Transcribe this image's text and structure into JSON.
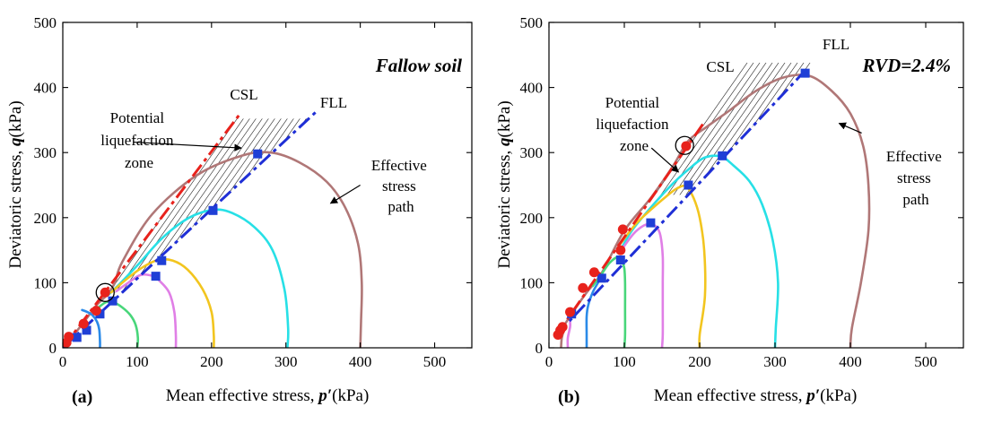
{
  "figure": {
    "colors": {
      "csl": "#e8221c",
      "fll": "#1f2fd6",
      "esp_main": "#b07777",
      "cyan": "#27e0e6",
      "yellow": "#f2c51f",
      "violet": "#e07fe6",
      "green": "#48d67a",
      "blue": "#2a8ae8",
      "marker_red": "#e8221c",
      "marker_blue": "#1f3fd6"
    }
  },
  "chart_data": [
    {
      "type": "line",
      "panel_label": "(a)",
      "title": "Fallow soil",
      "xlabel_pre": "Mean effective stress, ",
      "xlabel_sym": "p′",
      "xlabel_post": "(kPa)",
      "ylabel_pre": "Deviatoric stress, ",
      "ylabel_sym": "q",
      "ylabel_post": "(kPa)",
      "xlim": [
        0,
        550
      ],
      "ylim": [
        0,
        500
      ],
      "xticks": [
        0,
        100,
        200,
        300,
        400,
        500
      ],
      "yticks": [
        0,
        100,
        200,
        300,
        400,
        500
      ],
      "grid": false,
      "annotations": {
        "csl": "CSL",
        "fll": "FLL",
        "zone": [
          "Potential",
          "liquefaction",
          "zone"
        ],
        "esp": [
          "Effective",
          "stress",
          "path"
        ]
      },
      "csl_line": {
        "x": [
          0,
          240
        ],
        "y": [
          0,
          362
        ]
      },
      "fll_line": {
        "x": [
          0,
          340
        ],
        "y": [
          0,
          362
        ]
      },
      "hatch": {
        "q_min": 85,
        "q_max": 352
      },
      "circle": {
        "x": 57,
        "y": 85
      },
      "arrows": {
        "zone": {
          "from": [
            95,
            316
          ],
          "to": [
            240,
            307
          ]
        },
        "esp": {
          "from": [
            400,
            250
          ],
          "to": [
            360,
            222
          ]
        }
      },
      "series": [
        {
          "color_key": "esp_main",
          "points": [
            [
              400,
              0
            ],
            [
              401,
              40
            ],
            [
              402,
              100
            ],
            [
              397,
              160
            ],
            [
              380,
              215
            ],
            [
              355,
              255
            ],
            [
              318,
              285
            ],
            [
              280,
              300
            ],
            [
              240,
              295
            ],
            [
              180,
              265
            ],
            [
              120,
              205
            ],
            [
              80,
              132
            ],
            [
              70,
              100
            ],
            [
              60,
              82
            ],
            [
              45,
              65
            ],
            [
              30,
              42
            ],
            [
              15,
              20
            ],
            [
              8,
              8
            ]
          ]
        },
        {
          "color_key": "cyan",
          "points": [
            [
              302,
              0
            ],
            [
              303,
              30
            ],
            [
              298,
              90
            ],
            [
              282,
              150
            ],
            [
              258,
              185
            ],
            [
              228,
              207
            ],
            [
              203,
              212
            ],
            [
              170,
              200
            ],
            [
              135,
              170
            ],
            [
              103,
              130
            ],
            [
              78,
              100
            ],
            [
              60,
              80
            ]
          ]
        },
        {
          "color_key": "yellow",
          "points": [
            [
              203,
              0
            ],
            [
              203,
              20
            ],
            [
              200,
              55
            ],
            [
              188,
              90
            ],
            [
              168,
              120
            ],
            [
              148,
              134
            ],
            [
              128,
              135
            ],
            [
              105,
              122
            ],
            [
              82,
              102
            ],
            [
              65,
              85
            ]
          ]
        },
        {
          "color_key": "violet",
          "points": [
            [
              152,
              0
            ],
            [
              152,
              20
            ],
            [
              150,
              55
            ],
            [
              143,
              85
            ],
            [
              130,
              103
            ],
            [
              122,
              110
            ],
            [
              105,
              112
            ],
            [
              88,
              100
            ],
            [
              72,
              87
            ]
          ]
        },
        {
          "color_key": "green",
          "points": [
            [
              100,
              0
            ],
            [
              101,
              15
            ],
            [
              98,
              35
            ],
            [
              91,
              50
            ],
            [
              80,
              62
            ],
            [
              68,
              70
            ],
            [
              58,
              70
            ],
            [
              48,
              62
            ]
          ]
        },
        {
          "color_key": "blue",
          "points": [
            [
              50,
              0
            ],
            [
              50,
              10
            ],
            [
              49,
              28
            ],
            [
              46,
              40
            ],
            [
              40,
              50
            ],
            [
              33,
              55
            ],
            [
              26,
              58
            ]
          ]
        }
      ],
      "markers_red": [
        [
          5,
          8
        ],
        [
          8,
          17
        ],
        [
          28,
          37
        ],
        [
          45,
          57
        ],
        [
          57,
          85
        ]
      ],
      "markers_blue": [
        [
          19,
          16
        ],
        [
          32,
          27
        ],
        [
          50,
          52
        ],
        [
          67,
          72
        ],
        [
          125,
          110
        ],
        [
          133,
          134
        ],
        [
          202,
          211
        ],
        [
          262,
          298
        ]
      ]
    },
    {
      "type": "line",
      "panel_label": "(b)",
      "title": "RVD=2.4%",
      "xlabel_pre": "Mean effective stress, ",
      "xlabel_sym": "p′",
      "xlabel_post": "(kPa)",
      "ylabel_pre": "Deviatoric stress, ",
      "ylabel_sym": "q",
      "ylabel_post": "(kPa)",
      "xlim": [
        0,
        550
      ],
      "ylim": [
        0,
        500
      ],
      "xticks": [
        0,
        100,
        200,
        300,
        400,
        500
      ],
      "yticks": [
        0,
        100,
        200,
        300,
        400,
        500
      ],
      "grid": false,
      "annotations": {
        "csl": "CSL",
        "fll": "FLL",
        "zone": [
          "Potential",
          "liquefaction",
          "zone"
        ],
        "esp": [
          "Effective",
          "stress",
          "path"
        ]
      },
      "csl_line": {
        "x": [
          10,
          205
        ],
        "y": [
          20,
          345
        ]
      },
      "fll_line": {
        "x": [
          10,
          345
        ],
        "y": [
          20,
          432
        ]
      },
      "hatch": {
        "q_min": 235,
        "q_max": 438
      },
      "circle": {
        "x": 180,
        "y": 311
      },
      "arrows": {
        "zone": {
          "from": [
            136,
            307
          ],
          "to": [
            172,
            270
          ]
        },
        "esp": {
          "from": [
            415,
            330
          ],
          "to": [
            385,
            345
          ]
        }
      },
      "series": [
        {
          "color_key": "esp_main",
          "points": [
            [
              400,
              0
            ],
            [
              402,
              30
            ],
            [
              414,
              100
            ],
            [
              424,
              180
            ],
            [
              424,
              250
            ],
            [
              417,
              310
            ],
            [
              400,
              360
            ],
            [
              375,
              395
            ],
            [
              345,
              418
            ],
            [
              310,
              415
            ],
            [
              275,
              395
            ],
            [
              240,
              365
            ],
            [
              210,
              340
            ],
            [
              185,
              318
            ],
            [
              165,
              280
            ],
            [
              135,
              230
            ],
            [
              100,
              180
            ],
            [
              70,
              115
            ],
            [
              50,
              85
            ],
            [
              30,
              52
            ],
            [
              15,
              25
            ]
          ]
        },
        {
          "color_key": "cyan",
          "points": [
            [
              300,
              0
            ],
            [
              301,
              30
            ],
            [
              304,
              100
            ],
            [
              297,
              165
            ],
            [
              283,
              220
            ],
            [
              266,
              256
            ],
            [
              245,
              280
            ],
            [
              228,
              294
            ],
            [
              206,
              292
            ],
            [
              185,
              274
            ],
            [
              165,
              253
            ],
            [
              140,
              222
            ],
            [
              110,
              180
            ],
            [
              95,
              150
            ]
          ]
        },
        {
          "color_key": "yellow",
          "points": [
            [
              200,
              0
            ],
            [
              200,
              20
            ],
            [
              207,
              80
            ],
            [
              206,
              150
            ],
            [
              200,
              200
            ],
            [
              192,
              230
            ],
            [
              182,
              248
            ],
            [
              170,
              245
            ],
            [
              155,
              232
            ],
            [
              135,
              212
            ],
            [
              115,
              190
            ],
            [
              95,
              160
            ]
          ]
        },
        {
          "color_key": "violet",
          "points": [
            [
              150,
              0
            ],
            [
              151,
              20
            ],
            [
              151,
              60
            ],
            [
              151,
              100
            ],
            [
              151,
              140
            ],
            [
              148,
              172
            ],
            [
              143,
              185
            ],
            [
              136,
              190
            ],
            [
              126,
              188
            ],
            [
              112,
              175
            ],
            [
              96,
              150
            ]
          ]
        },
        {
          "color_key": "green",
          "points": [
            [
              100,
              0
            ],
            [
              101,
              20
            ],
            [
              101,
              60
            ],
            [
              101,
              100
            ],
            [
              100,
              122
            ],
            [
              97,
              133
            ],
            [
              92,
              140
            ],
            [
              80,
              130
            ],
            [
              68,
              110
            ],
            [
              58,
              95
            ]
          ]
        },
        {
          "color_key": "blue",
          "points": [
            [
              50,
              0
            ],
            [
              50,
              20
            ],
            [
              50,
              48
            ],
            [
              52,
              65
            ],
            [
              58,
              85
            ],
            [
              65,
              100
            ],
            [
              68,
              108
            ]
          ]
        },
        {
          "color_key": "violet",
          "points": [
            [
              25,
              0
            ],
            [
              25,
              15
            ],
            [
              28,
              32
            ],
            [
              28,
              40
            ]
          ]
        },
        {
          "color_key": "esp_main",
          "points": [
            [
              16,
              0
            ],
            [
              17,
              15
            ],
            [
              20,
              28
            ]
          ]
        }
      ],
      "markers_red": [
        [
          12,
          20
        ],
        [
          15,
          27
        ],
        [
          18,
          32
        ],
        [
          28,
          55
        ],
        [
          45,
          92
        ],
        [
          60,
          116
        ],
        [
          95,
          150
        ],
        [
          98,
          182
        ],
        [
          182,
          310
        ]
      ],
      "markers_blue": [
        [
          30,
          52
        ],
        [
          70,
          107
        ],
        [
          95,
          135
        ],
        [
          135,
          192
        ],
        [
          185,
          250
        ],
        [
          230,
          295
        ],
        [
          340,
          422
        ]
      ]
    }
  ]
}
